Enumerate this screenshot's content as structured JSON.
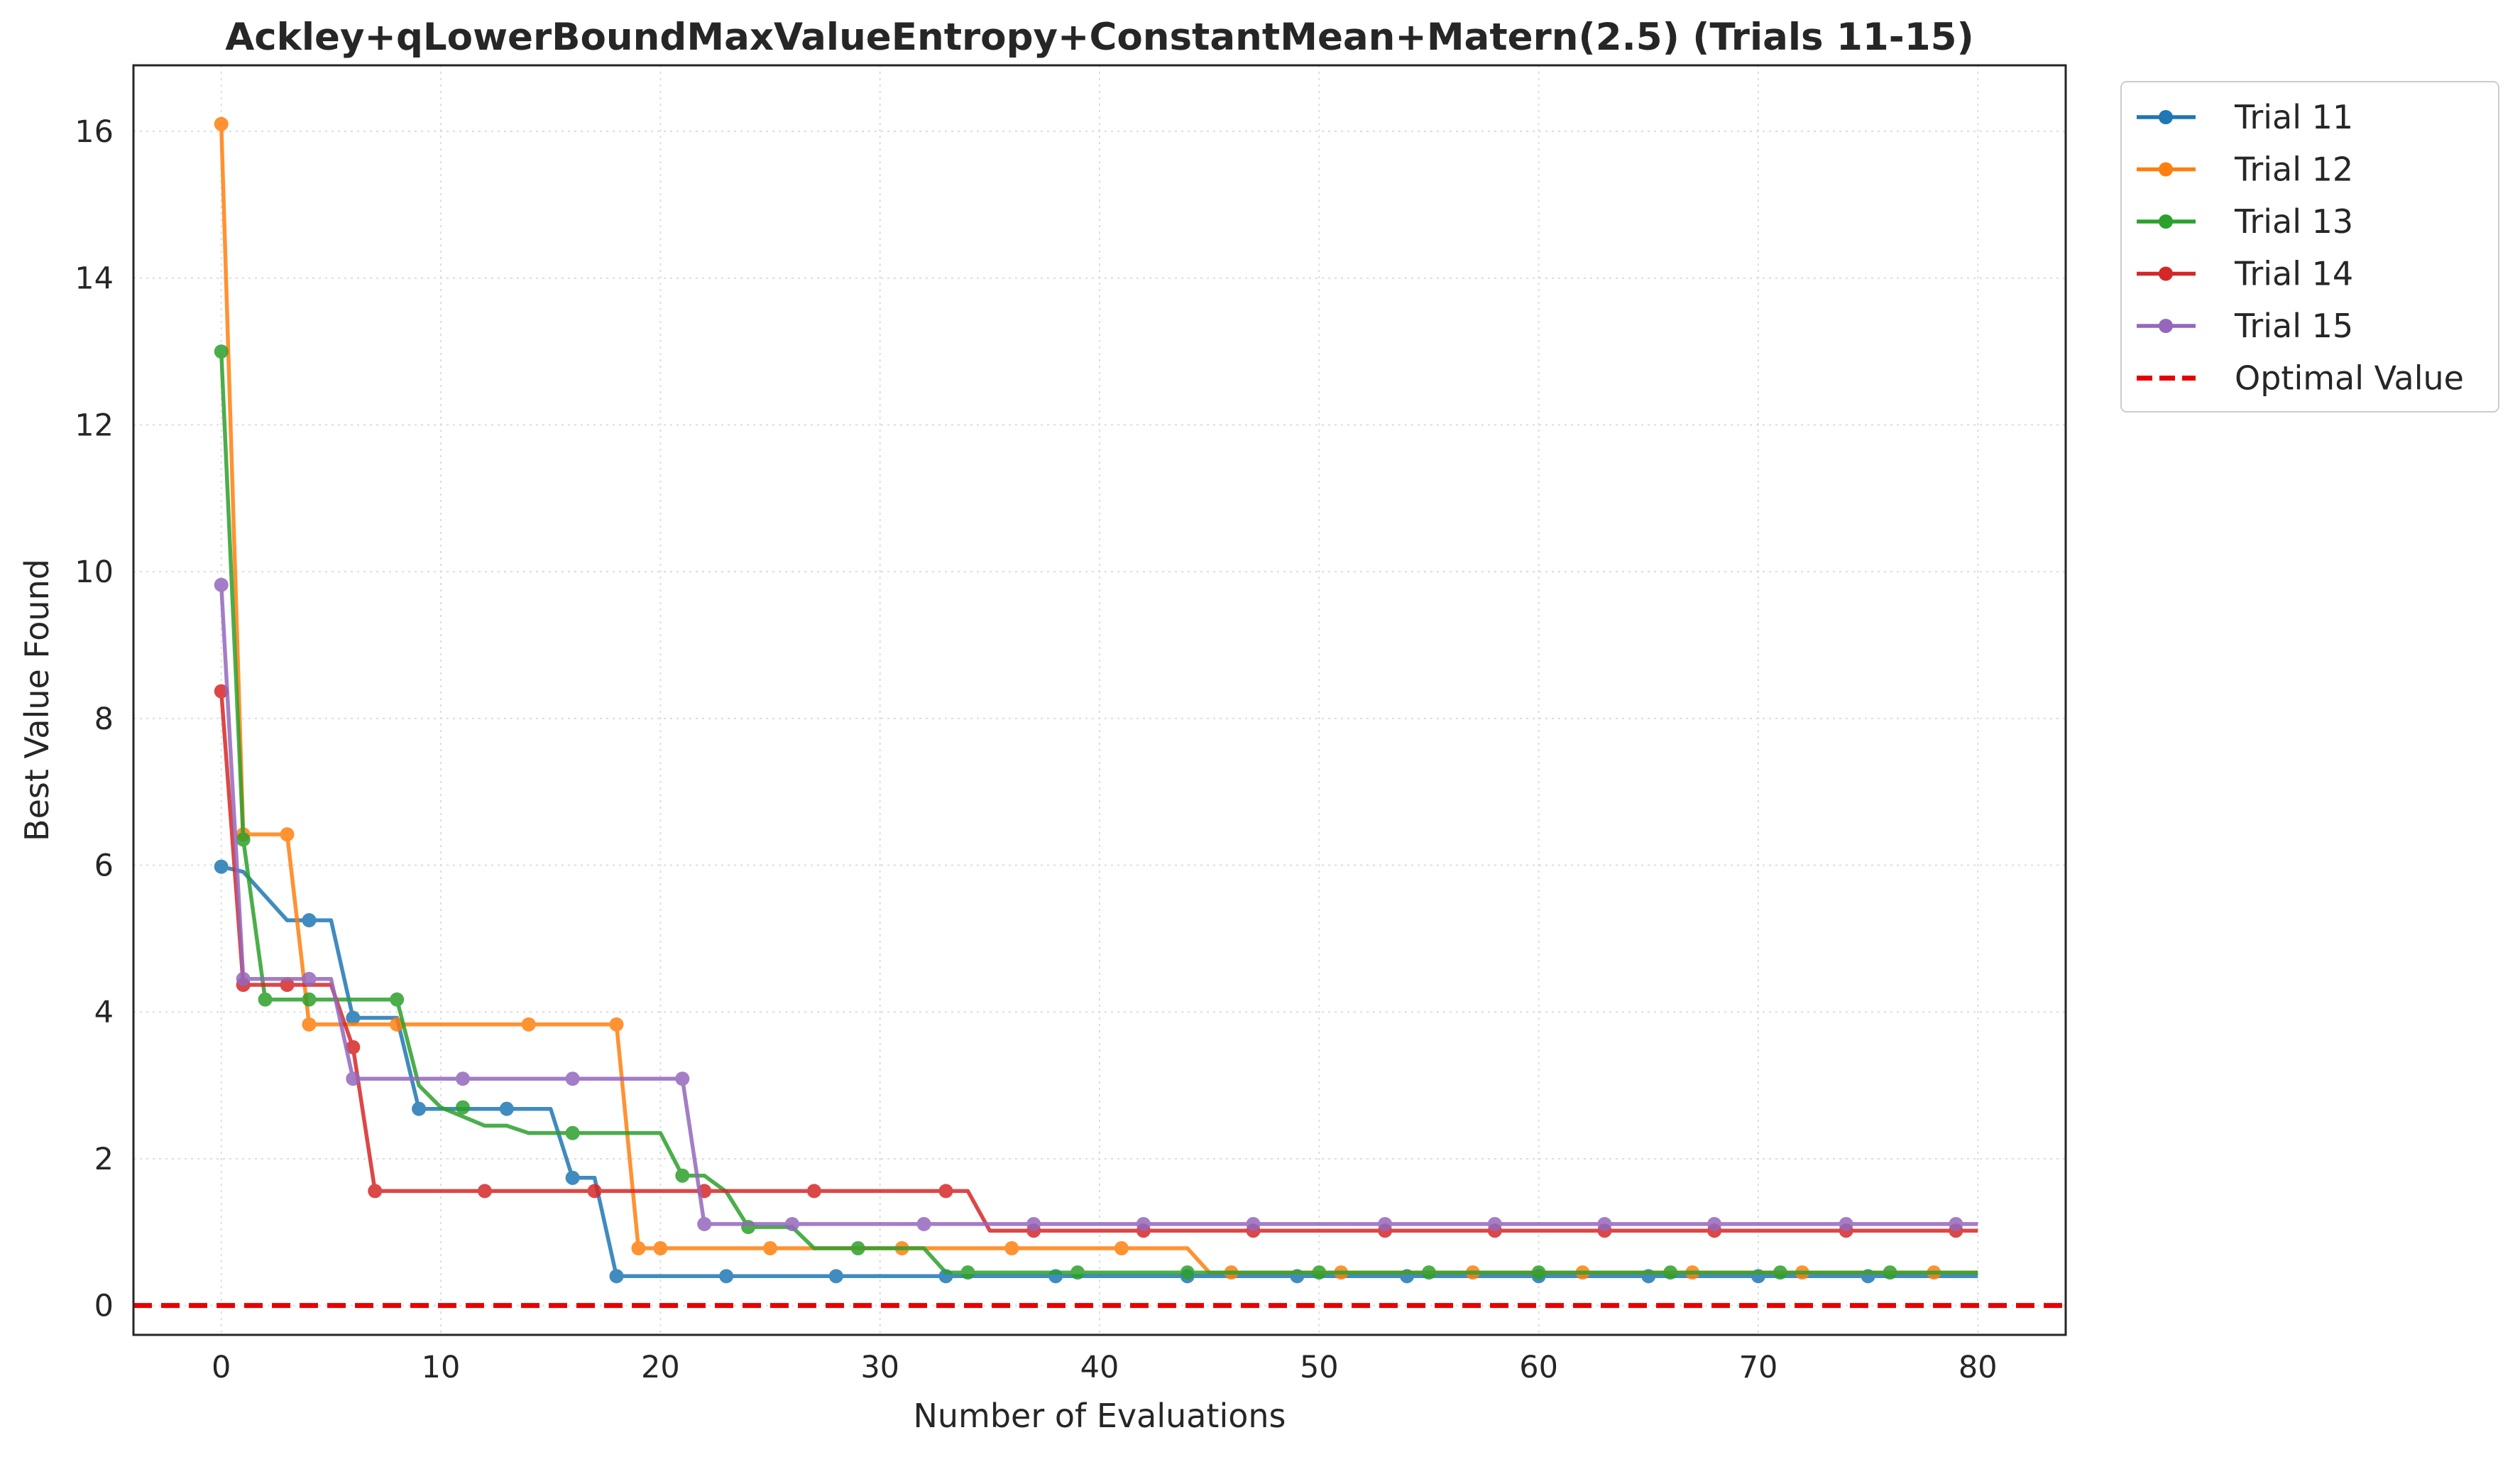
{
  "chart_data": {
    "type": "line",
    "title": "Ackley+qLowerBoundMaxValueEntropy+ConstantMean+Matern(2.5) (Trials 11-15)",
    "xlabel": "Number of Evaluations",
    "ylabel": "Best Value Found",
    "xlim": [
      -4,
      84
    ],
    "ylim": [
      -0.4,
      16.9
    ],
    "x_ticks": [
      0,
      10,
      20,
      30,
      40,
      50,
      60,
      70,
      80
    ],
    "y_ticks": [
      0,
      2,
      4,
      6,
      8,
      10,
      12,
      14,
      16
    ],
    "grid": true,
    "legend_position": "outside-top-right",
    "line_style": "step-post with circle markers every 5 evaluations",
    "series": [
      {
        "name": "Trial 11",
        "color": "#1f77b4",
        "step": [
          [
            0,
            5.98
          ],
          [
            1,
            5.91
          ],
          [
            3,
            5.25
          ],
          [
            5,
            5.25
          ],
          [
            6,
            3.92
          ],
          [
            8,
            3.92
          ],
          [
            9,
            2.68
          ],
          [
            15,
            2.68
          ],
          [
            16,
            1.74
          ],
          [
            17,
            1.74
          ],
          [
            18,
            0.4
          ],
          [
            80,
            0.4
          ]
        ],
        "marker_x": [
          0,
          4,
          6,
          9,
          13,
          16,
          18,
          23,
          28,
          33,
          38,
          44,
          49,
          54,
          60,
          65,
          70,
          75
        ]
      },
      {
        "name": "Trial 12",
        "color": "#ff7f0e",
        "step": [
          [
            0,
            16.1
          ],
          [
            1,
            6.42
          ],
          [
            3,
            6.42
          ],
          [
            4,
            3.83
          ],
          [
            18,
            3.83
          ],
          [
            19,
            0.78
          ],
          [
            44,
            0.78
          ],
          [
            45,
            0.45
          ],
          [
            80,
            0.45
          ]
        ],
        "marker_x": [
          0,
          1,
          3,
          4,
          8,
          14,
          18,
          19,
          20,
          25,
          31,
          36,
          41,
          46,
          51,
          57,
          62,
          67,
          72,
          78
        ]
      },
      {
        "name": "Trial 13",
        "color": "#2ca02c",
        "step": [
          [
            0,
            13.0
          ],
          [
            1,
            6.35
          ],
          [
            2,
            4.17
          ],
          [
            8,
            4.17
          ],
          [
            9,
            3.0
          ],
          [
            10,
            2.7
          ],
          [
            12,
            2.45
          ],
          [
            13,
            2.45
          ],
          [
            14,
            2.35
          ],
          [
            20,
            2.35
          ],
          [
            21,
            1.77
          ],
          [
            22,
            1.77
          ],
          [
            23,
            1.55
          ],
          [
            24,
            1.07
          ],
          [
            26,
            1.07
          ],
          [
            27,
            0.78
          ],
          [
            32,
            0.78
          ],
          [
            33,
            0.45
          ],
          [
            80,
            0.45
          ]
        ],
        "marker_x": [
          0,
          1,
          2,
          4,
          8,
          11,
          16,
          21,
          24,
          29,
          34,
          39,
          44,
          50,
          55,
          60,
          66,
          71,
          76
        ]
      },
      {
        "name": "Trial 14",
        "color": "#d62728",
        "step": [
          [
            0,
            8.37
          ],
          [
            1,
            4.37
          ],
          [
            5,
            4.37
          ],
          [
            6,
            3.52
          ],
          [
            7,
            1.56
          ],
          [
            34,
            1.56
          ],
          [
            35,
            1.02
          ],
          [
            80,
            1.02
          ]
        ],
        "marker_x": [
          0,
          1,
          3,
          6,
          7,
          12,
          17,
          22,
          27,
          33,
          37,
          42,
          47,
          53,
          58,
          63,
          68,
          74,
          79
        ]
      },
      {
        "name": "Trial 15",
        "color": "#9467bd",
        "step": [
          [
            0,
            9.82
          ],
          [
            1,
            4.45
          ],
          [
            5,
            4.45
          ],
          [
            6,
            3.09
          ],
          [
            21,
            3.09
          ],
          [
            22,
            1.11
          ],
          [
            80,
            1.11
          ]
        ],
        "marker_x": [
          0,
          1,
          4,
          6,
          11,
          16,
          21,
          22,
          26,
          32,
          37,
          42,
          47,
          53,
          58,
          63,
          68,
          74,
          79
        ]
      },
      {
        "name": "Optimal Value",
        "color": "#e60000",
        "dashed": true,
        "constant": 0
      }
    ]
  }
}
